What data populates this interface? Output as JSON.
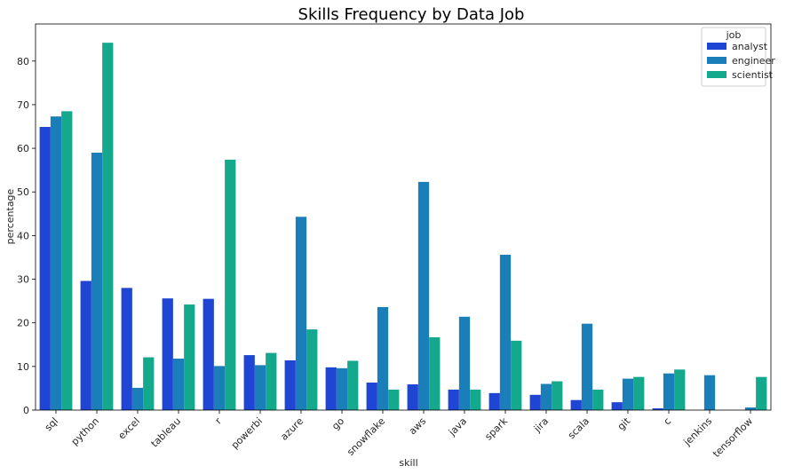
{
  "chart_data": {
    "type": "bar",
    "title": "Skills Frequency by Data Job",
    "xlabel": "skill",
    "ylabel": "percentage",
    "ylim": [
      0,
      88.5
    ],
    "yticks": [
      0,
      10,
      20,
      30,
      40,
      50,
      60,
      70,
      80
    ],
    "categories": [
      "sql",
      "python",
      "excel",
      "tableau",
      "r",
      "powerbi",
      "azure",
      "go",
      "snowflake",
      "aws",
      "java",
      "spark",
      "jira",
      "scala",
      "git",
      "c",
      "jenkins",
      "tensorflow"
    ],
    "legend": {
      "title": "job",
      "position": "top-right"
    },
    "series": [
      {
        "name": "analyst",
        "color": "#1f45d4",
        "values": [
          64.9,
          29.6,
          28.0,
          25.6,
          25.5,
          12.6,
          11.4,
          9.8,
          6.3,
          5.9,
          4.7,
          3.9,
          3.5,
          2.3,
          1.8,
          0.4,
          0.0,
          0.0
        ]
      },
      {
        "name": "engineer",
        "color": "#1a7fb8",
        "values": [
          67.3,
          59.0,
          5.1,
          11.8,
          10.1,
          10.3,
          44.3,
          9.6,
          23.6,
          52.3,
          21.4,
          35.6,
          6.0,
          19.8,
          7.2,
          8.4,
          8.0,
          0.6
        ]
      },
      {
        "name": "scientist",
        "color": "#14a98c",
        "values": [
          68.5,
          84.2,
          12.1,
          24.2,
          57.4,
          13.1,
          18.5,
          11.3,
          4.7,
          16.7,
          4.7,
          15.9,
          6.6,
          4.7,
          7.6,
          9.3,
          0.0,
          7.6
        ]
      }
    ]
  }
}
